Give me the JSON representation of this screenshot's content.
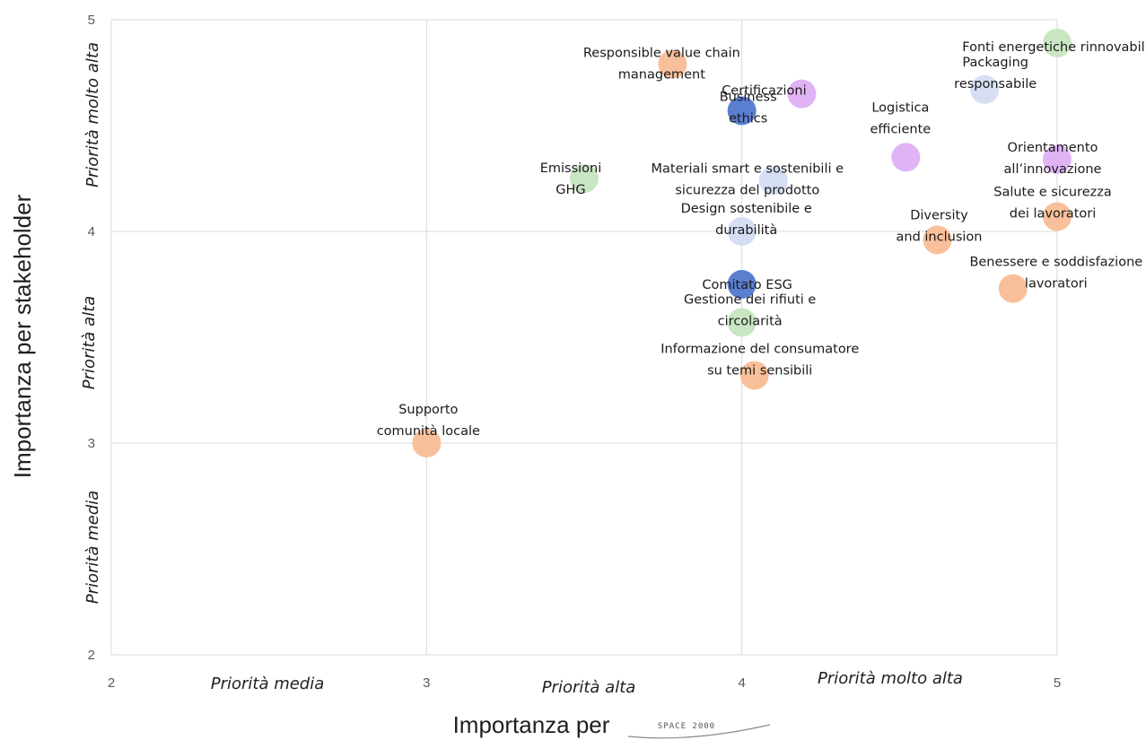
{
  "colors": {
    "orange": "#f8c09a",
    "blue": "#5b7fd0",
    "green": "#c9e6c2",
    "lilac": "#e0b3f5",
    "lightblue": "#d6def4"
  },
  "x_priority_labels": [
    "Priorità media",
    "Priorità alta",
    "Priorità molto alta"
  ],
  "y_priority_labels": [
    "Priorità media",
    "Priorità alta",
    "Priorità molto alta"
  ],
  "x_axis_logo": "SPACE 2000",
  "chart_data": {
    "type": "scatter",
    "title": "",
    "xlabel": "Importanza per",
    "ylabel": "Importanza per stakeholder",
    "xlim": [
      2,
      5
    ],
    "ylim": [
      2,
      5
    ],
    "x_ticks": [
      2,
      3,
      4,
      5
    ],
    "y_ticks": [
      2,
      3,
      4,
      5
    ],
    "grid": true,
    "points": [
      {
        "lines": [
          "Fonti energetiche rinnovabili"
        ],
        "x": 5.0,
        "y": 4.89,
        "color": "green"
      },
      {
        "lines": [
          "Responsible value chain",
          "management"
        ],
        "x": 3.78,
        "y": 4.79,
        "color": "orange"
      },
      {
        "lines": [
          "Packaging",
          "responsabile"
        ],
        "x": 4.77,
        "y": 4.67,
        "color": "lightblue"
      },
      {
        "lines": [
          "Certificazioni"
        ],
        "x": 4.19,
        "y": 4.65,
        "color": "lilac"
      },
      {
        "lines": [
          "Business",
          "ethics"
        ],
        "x": 4.0,
        "y": 4.57,
        "color": "blue"
      },
      {
        "lines": [
          "Logistica",
          "efficiente"
        ],
        "x": 4.52,
        "y": 4.35,
        "color": "lilac"
      },
      {
        "lines": [
          "Orientamento",
          "all’innovazione"
        ],
        "x": 5.0,
        "y": 4.34,
        "color": "lilac"
      },
      {
        "lines": [
          "Emissioni",
          "GHG"
        ],
        "x": 3.5,
        "y": 4.25,
        "color": "green"
      },
      {
        "lines": [
          "Materiali smart e sostenibili e",
          "sicurezza del prodotto"
        ],
        "x": 4.1,
        "y": 4.24,
        "color": "lightblue"
      },
      {
        "lines": [
          "Salute e sicurezza",
          "dei lavoratori"
        ],
        "x": 5.0,
        "y": 4.07,
        "color": "orange"
      },
      {
        "lines": [
          "Design sostenibile e",
          "durabilità"
        ],
        "x": 4.0,
        "y": 4.0,
        "color": "lightblue"
      },
      {
        "lines": [
          "Diversity",
          "and inclusion"
        ],
        "x": 4.62,
        "y": 3.96,
        "color": "orange"
      },
      {
        "lines": [
          "Comitato ESG"
        ],
        "x": 4.0,
        "y": 3.75,
        "color": "blue"
      },
      {
        "lines": [
          "Benessere e soddisfazione",
          "lavoratori"
        ],
        "x": 4.86,
        "y": 3.73,
        "color": "orange"
      },
      {
        "lines": [
          "Gestione dei rifiuti e",
          "circolarità"
        ],
        "x": 4.0,
        "y": 3.57,
        "color": "green"
      },
      {
        "lines": [
          "Informazione del consumatore",
          "su temi sensibili"
        ],
        "x": 4.04,
        "y": 3.32,
        "color": "orange"
      },
      {
        "lines": [
          "Supporto",
          "comunità locale"
        ],
        "x": 3.0,
        "y": 3.0,
        "color": "orange"
      }
    ]
  }
}
